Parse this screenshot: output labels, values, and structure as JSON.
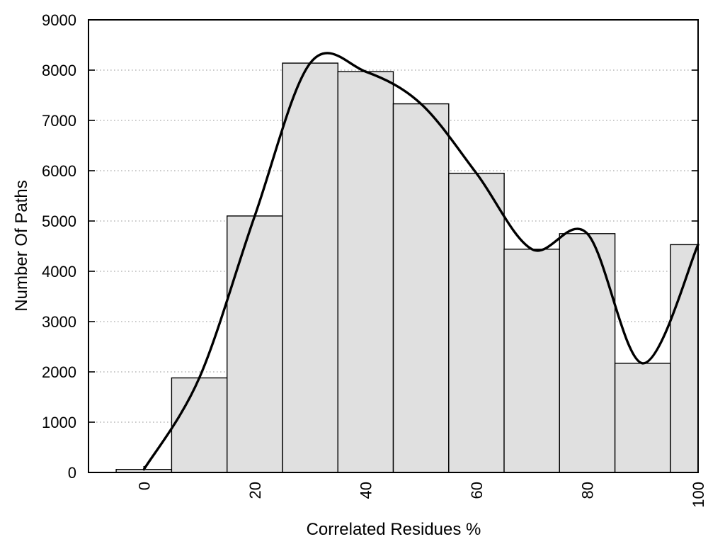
{
  "chart_data": {
    "type": "bar",
    "subtype": "histogram-with-smooth-curve-overlay",
    "title": "",
    "xlabel": "Correlated Residues %",
    "ylabel": "Number Of Paths",
    "bin_centers": [
      0,
      10,
      20,
      30,
      40,
      50,
      60,
      70,
      80,
      90,
      100
    ],
    "bin_width": 10,
    "series": [
      {
        "name": "paths-histogram",
        "type": "bar",
        "values": [
          60,
          1880,
          5100,
          8140,
          7970,
          7330,
          5950,
          4440,
          4750,
          2170,
          4530
        ]
      },
      {
        "name": "smoothed-fit-curve",
        "type": "line",
        "smooth": "cspline-through-bin-centers",
        "x": [
          0,
          10,
          20,
          30,
          40,
          50,
          60,
          70,
          80,
          90,
          100
        ],
        "values": [
          60,
          1880,
          5100,
          8140,
          7970,
          7330,
          5950,
          4440,
          4750,
          2170,
          4530
        ]
      }
    ],
    "xlim": [
      -10,
      100
    ],
    "ylim": [
      0,
      9000
    ],
    "xticks": [
      0,
      20,
      40,
      60,
      80,
      100
    ],
    "yticks": [
      0,
      1000,
      2000,
      3000,
      4000,
      5000,
      6000,
      7000,
      8000,
      9000
    ],
    "xtick_rotation_deg": -90,
    "grid": {
      "horizontal": true,
      "vertical": false,
      "style": "dotted"
    },
    "legend": "none",
    "colors": {
      "background": "#ffffff",
      "bar_fill": "#e0e0e0",
      "bar_stroke": "#000000",
      "curve": "#000000",
      "grid": "#aaaaaa",
      "axis": "#000000",
      "text": "#000000"
    }
  }
}
